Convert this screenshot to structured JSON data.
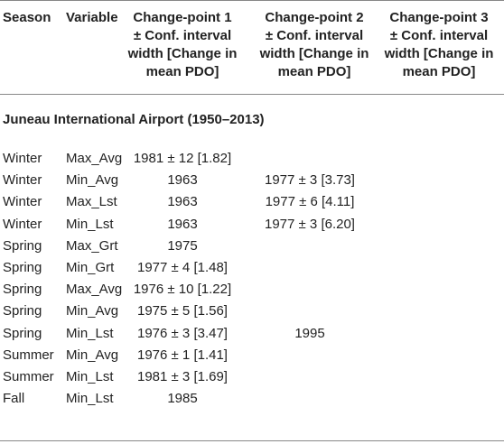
{
  "headers": {
    "season": "Season",
    "variable": "Variable",
    "cp1": "Change-point 1\n± Conf. interval\nwidth [Change in\nmean PDO]",
    "cp2": "Change-point 2\n± Conf. interval\nwidth [Change in\nmean PDO]",
    "cp3": "Change-point 3\n± Conf. interval\nwidth [Change in\nmean PDO]"
  },
  "section": "Juneau International Airport (1950–2013)",
  "rows": [
    {
      "season": "Winter",
      "variable": "Max_Avg",
      "cp1": "1981 ± 12 [1.82]",
      "cp2": "",
      "cp3": ""
    },
    {
      "season": "Winter",
      "variable": "Min_Avg",
      "cp1": "1963",
      "cp2": "1977 ± 3 [3.73]",
      "cp3": ""
    },
    {
      "season": "Winter",
      "variable": "Max_Lst",
      "cp1": "1963",
      "cp2": "1977 ± 6 [4.11]",
      "cp3": ""
    },
    {
      "season": "Winter",
      "variable": "Min_Lst",
      "cp1": "1963",
      "cp2": "1977 ± 3 [6.20]",
      "cp3": ""
    },
    {
      "season": "Spring",
      "variable": "Max_Grt",
      "cp1": "1975",
      "cp2": "",
      "cp3": ""
    },
    {
      "season": "Spring",
      "variable": "Min_Grt",
      "cp1": "1977 ± 4 [1.48]",
      "cp2": "",
      "cp3": ""
    },
    {
      "season": "Spring",
      "variable": "Max_Avg",
      "cp1": "1976 ± 10 [1.22]",
      "cp2": "",
      "cp3": ""
    },
    {
      "season": "Spring",
      "variable": "Min_Avg",
      "cp1": "1975 ± 5 [1.56]",
      "cp2": "",
      "cp3": ""
    },
    {
      "season": "Spring",
      "variable": "Min_Lst",
      "cp1": "1976 ± 3 [3.47]",
      "cp2": "1995",
      "cp3": ""
    },
    {
      "season": "Summer",
      "variable": "Min_Avg",
      "cp1": "1976 ± 1 [1.41]",
      "cp2": "",
      "cp3": ""
    },
    {
      "season": "Summer",
      "variable": "Min_Lst",
      "cp1": "1981 ± 3 [1.69]",
      "cp2": "",
      "cp3": ""
    },
    {
      "season": "Fall",
      "variable": "Min_Lst",
      "cp1": "1985",
      "cp2": "",
      "cp3": ""
    }
  ]
}
